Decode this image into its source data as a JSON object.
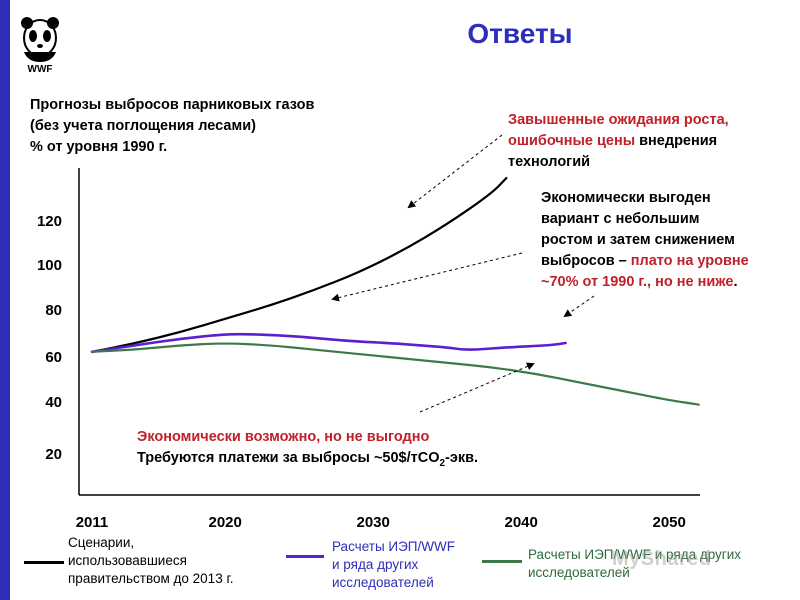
{
  "slide": {
    "title": "Ответы",
    "logo_text": "WWF"
  },
  "chart_title": {
    "line1": "Прогнозы выбросов парниковых газов",
    "line2": "(без учета поглощения лесами)",
    "line3": "% от уровня 1990 г."
  },
  "annotations": {
    "top": {
      "line1": "Завышенные ожидания роста,",
      "line2_red": "ошибочные цены",
      "line2_black": " внедрения",
      "line3": "технологий"
    },
    "middle": {
      "line1": "Экономически выгоден",
      "line2": "вариант с небольшим",
      "line3": "ростом и затем снижением",
      "line4_black": "выбросов – ",
      "line4_red": "плато на уровне",
      "line5_red": "~70% от 1990 г., но не ниже",
      "line5_black": "."
    },
    "bottom": {
      "line1": "Экономически возможно, но не выгодно",
      "line2_a": "Требуются платежи за выбросы ~50$/тCO",
      "line2_sub": "2",
      "line2_b": "-экв."
    }
  },
  "legend": {
    "black": {
      "line1": "Сценарии,",
      "line2": "использовавшиеся",
      "line3": "правительством до 2013 г."
    },
    "purple": {
      "line1": "Расчеты ИЭП/WWF",
      "line2": "и ряда других",
      "line3": "исследователей"
    },
    "green": {
      "line1": "Расчеты ИЭП/WWF и ряда других",
      "line2": "исследователей"
    }
  },
  "watermark": "MyShared",
  "colors": {
    "accent": "#2e2eb8",
    "red": "#c0202a",
    "black_series": "#000000",
    "purple_series": "#5b1fd1",
    "green_series": "#3d7a4a"
  },
  "chart_data": {
    "type": "line",
    "x_ticks": [
      "2011",
      "2020",
      "2030",
      "2040",
      "2050"
    ],
    "y_ticks": [
      "20",
      "40",
      "60",
      "80",
      "100",
      "120"
    ],
    "series": [
      {
        "key": "black",
        "x": [
          2011,
          2014,
          2017,
          2020,
          2023,
          2026,
          2029,
          2032,
          2035,
          2038,
          2039
        ],
        "y": [
          66,
          70,
          75,
          81,
          87,
          94,
          102,
          112,
          124,
          138,
          145
        ]
      },
      {
        "key": "purple",
        "x": [
          2011,
          2014,
          2017,
          2020,
          2022,
          2025,
          2028,
          2031,
          2033,
          2035,
          2036,
          2037,
          2039,
          2042,
          2043
        ],
        "y": [
          66,
          69,
          72,
          74,
          74,
          73,
          71,
          70,
          69,
          68,
          67,
          67,
          68,
          69,
          70
        ]
      },
      {
        "key": "green",
        "x": [
          2011,
          2014,
          2017,
          2020,
          2023,
          2026,
          2029,
          2032,
          2035,
          2038,
          2041,
          2044,
          2047,
          2050,
          2052
        ],
        "y": [
          66,
          67,
          69,
          70,
          69,
          67,
          65,
          63,
          61,
          59,
          56,
          52,
          48,
          44,
          42
        ]
      }
    ]
  }
}
